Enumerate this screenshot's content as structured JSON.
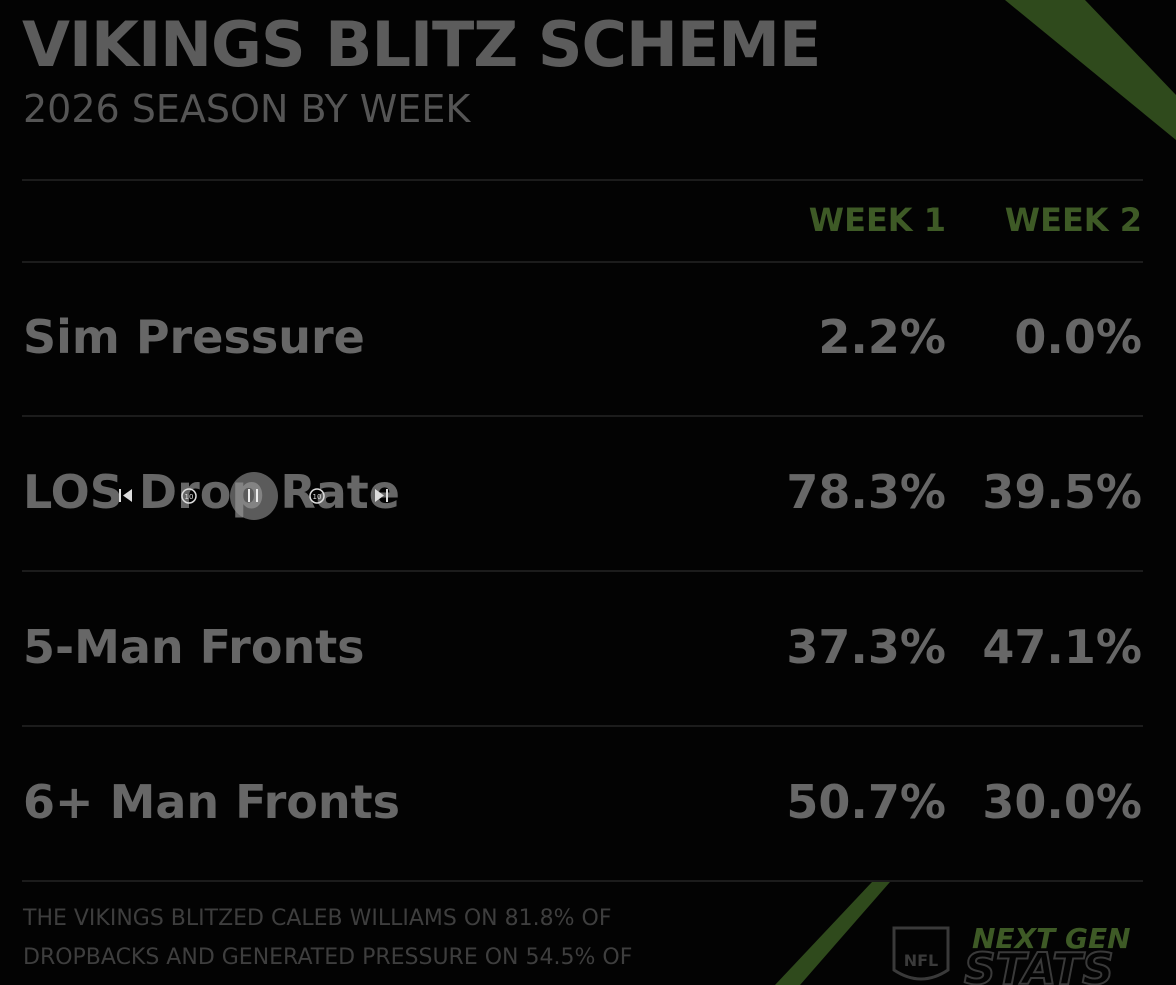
{
  "header": {
    "title": "VIKINGS BLITZ SCHEME",
    "subtitle": "2026 SEASON BY WEEK"
  },
  "table": {
    "columns": [
      "WEEK 1",
      "WEEK 2"
    ],
    "rows": [
      [
        "Sim Pressure",
        "2.2%",
        "0.0%"
      ],
      [
        "LOS Drop Rate",
        "78.3%",
        "39.5%"
      ],
      [
        "5-Man Fronts",
        "37.3%",
        "47.1%"
      ],
      [
        "6+ Man Fronts",
        "50.7%",
        "30.0%"
      ]
    ]
  },
  "footer": {
    "note": [
      "THE VIKINGS BLITZED CALEB WILLIAMS ON 81.8% OF",
      "DROPBACKS AND GENERATED PRESSURE ON 54.5% OF"
    ],
    "logo": {
      "shield": "NFL",
      "line1": "NEXT GEN",
      "line2": "STATS"
    }
  }
}
